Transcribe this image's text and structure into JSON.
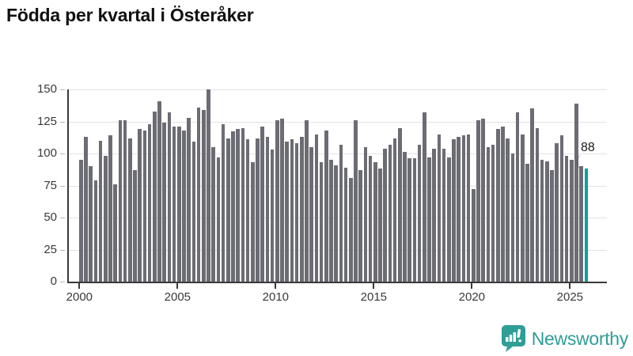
{
  "title": "Födda per kvartal i Österåker",
  "annotation": {
    "label": "88"
  },
  "branding": {
    "name": "Newsworthy",
    "color": "#2f9e96",
    "icon": "newsworthy-speech-bubble-chart-icon"
  },
  "colors": {
    "bar": "#6c6c74",
    "highlight": "#0aa39c",
    "grid": "#e3e3e3",
    "axis": "#3a3a3a",
    "tick_text": "#3a3a3a",
    "title_text": "#111111"
  },
  "chart_data": {
    "type": "bar",
    "title": "Födda per kvartal i Österåker",
    "xlabel": "",
    "ylabel": "",
    "x_range": "2000 Q1 – 2025 Q4 (quarterly)",
    "x_tick_labels": [
      "2000",
      "2005",
      "2010",
      "2015",
      "2020",
      "2025"
    ],
    "y_tick_values": [
      0,
      25,
      50,
      75,
      100,
      125,
      150
    ],
    "ylim": [
      0,
      150
    ],
    "grid": true,
    "legend": "none",
    "values": [
      95,
      113,
      90,
      79,
      110,
      98,
      114,
      76,
      126,
      126,
      112,
      87,
      119,
      118,
      123,
      133,
      141,
      124,
      132,
      121,
      121,
      118,
      128,
      109,
      136,
      134,
      150,
      105,
      97,
      123,
      112,
      117,
      119,
      120,
      111,
      93,
      112,
      121,
      113,
      103,
      126,
      127,
      109,
      111,
      108,
      113,
      126,
      105,
      115,
      93,
      118,
      95,
      91,
      107,
      89,
      81,
      126,
      87,
      105,
      98,
      93,
      88,
      104,
      107,
      112,
      120,
      101,
      96,
      96,
      107,
      132,
      97,
      104,
      115,
      104,
      97,
      111,
      113,
      114,
      115,
      72,
      126,
      127,
      105,
      107,
      119,
      121,
      112,
      100,
      132,
      115,
      92,
      135,
      120,
      95,
      94,
      87,
      108,
      114,
      98,
      95,
      139,
      90,
      88
    ],
    "highlight_index": 103,
    "highlight_value": 88,
    "annotation": "88"
  }
}
